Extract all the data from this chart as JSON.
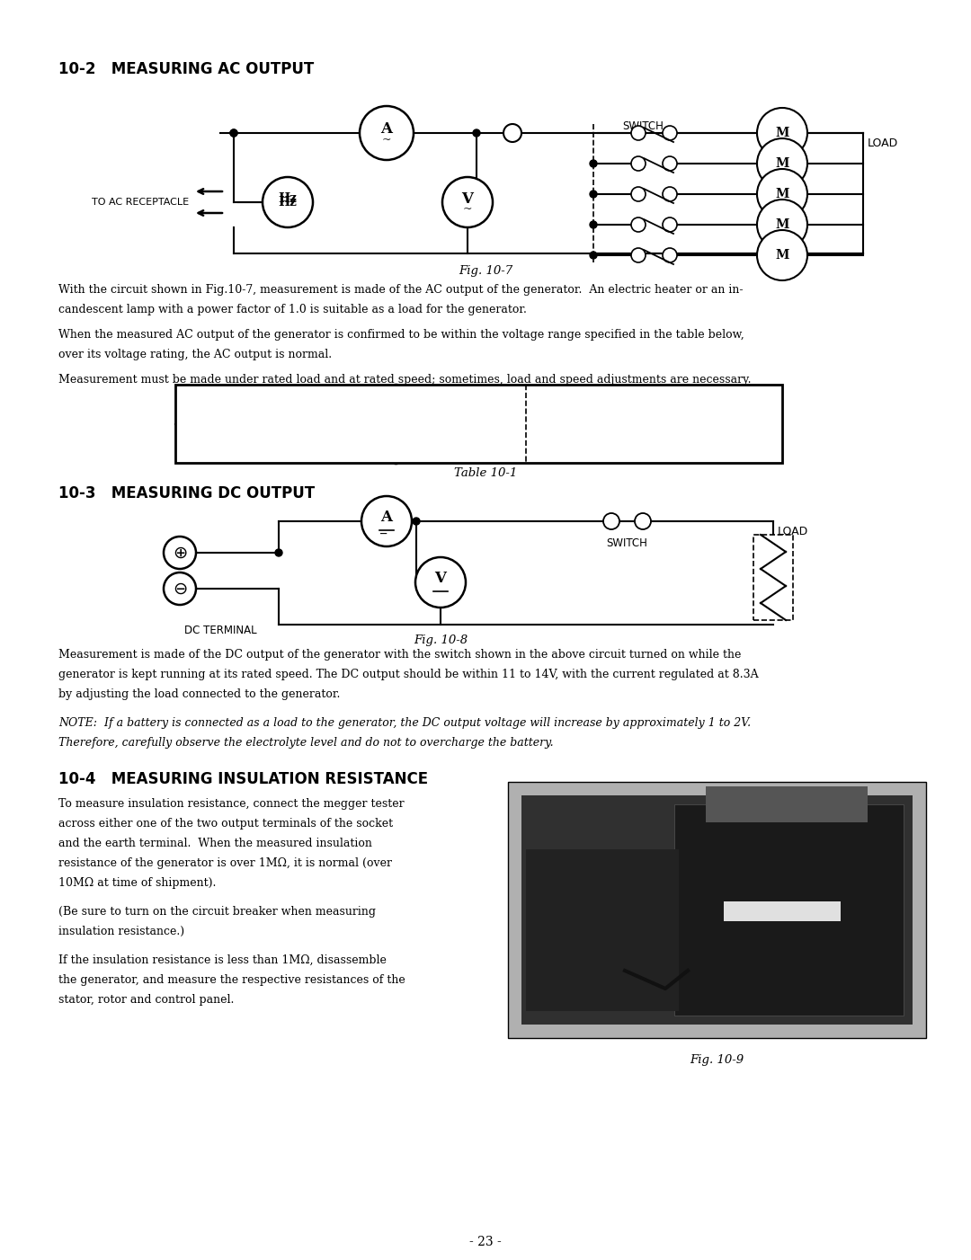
{
  "page_bg": "#ffffff",
  "title_10_2": "10-2   MEASURING AC OUTPUT",
  "title_10_3": "10-3   MEASURING DC OUTPUT",
  "title_10_4": "10-4   MEASURING INSULATION RESISTANCE",
  "fig_10_7": "Fig. 10-7",
  "fig_10_8": "Fig. 10-8",
  "fig_10_9": "Fig. 10-9",
  "table_10_1": "Table 10-1",
  "page_num": "- 23 -",
  "para_10_2_1": "With the circuit shown in Fig.10-7, measurement is made of the AC output of the generator.  An electric heater or an in-",
  "para_10_2_2": "candescent lamp with a power factor of 1.0 is suitable as a load for the generator.",
  "para_10_2_3": "When the measured AC output of the generator is confirmed to be within the voltage range specified in the table below,",
  "para_10_2_4": "over its voltage rating, the AC output is normal.",
  "para_10_2_5": "Measurement must be made under rated load and at rated speed; sometimes, load and speed adjustments are necessary.",
  "para_10_3_1": "Measurement is made of the DC output of the generator with the switch shown in the above circuit turned on while the",
  "para_10_3_2": "generator is kept running at its rated speed. The DC output should be within 11 to 14V, with the current regulated at 8.3A",
  "para_10_3_3": "by adjusting the load connected to the generator.",
  "para_10_3_note": "NOTE:  If a battery is connected as a load to the generator, the DC output voltage will increase by approximately 1 to 2V.",
  "para_10_3_note2": "Therefore, carefully observe the electrolyte level and do not to overcharge the battery.",
  "para_10_4_1": "To measure insulation resistance, connect the megger tester",
  "para_10_4_2": "across either one of the two output terminals of the socket",
  "para_10_4_3": "and the earth terminal.  When the measured insulation",
  "para_10_4_4": "resistance of the generator is over 1MΩ, it is normal (over",
  "para_10_4_5": "10MΩ at time of shipment).",
  "para_10_4_6": "(Be sure to turn on the circuit breaker when measuring",
  "para_10_4_7": "insulation resistance.)",
  "para_10_4_8": "If the insulation resistance is less than 1MΩ, disassemble",
  "para_10_4_9": "the generator, and measure the respective resistances of the",
  "para_10_4_10": "stator, rotor and control panel."
}
